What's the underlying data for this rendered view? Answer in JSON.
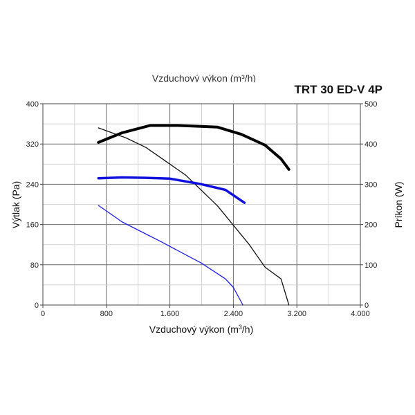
{
  "chart_data": {
    "type": "line",
    "title": "TRT 30 ED-V 4P",
    "top_label": "Vzduchový výkon (m³/h)",
    "xlabel_main": "Vzduchový výkon (m",
    "xlabel_sup": "3",
    "xlabel_end": "/h)",
    "ylabel_left": "Výtlak (Pa)",
    "ylabel_right": "Príkon (W)",
    "xlim": [
      0,
      4000
    ],
    "ylim_left": [
      0,
      400
    ],
    "ylim_right": [
      0,
      500
    ],
    "x_ticks": [
      0,
      800,
      1600,
      2400,
      3200,
      4000
    ],
    "x_tick_labels": [
      "0",
      "800",
      "1.600",
      "2.400",
      "3.200",
      "4.000"
    ],
    "y_left_ticks": [
      0,
      80,
      160,
      240,
      320,
      400
    ],
    "y_left_tick_labels": [
      "0",
      "80",
      "160",
      "240",
      "320",
      "400"
    ],
    "y_right_ticks": [
      0,
      100,
      200,
      300,
      400,
      500
    ],
    "y_right_tick_labels": [
      "0",
      "100",
      "200",
      "300",
      "400",
      "500"
    ],
    "grid": true,
    "series": [
      {
        "axis": "left",
        "color": "#111111",
        "width": 1.3,
        "points": [
          [
            700,
            352
          ],
          [
            1050,
            332
          ],
          [
            1300,
            313
          ],
          [
            1800,
            258
          ],
          [
            2200,
            197
          ],
          [
            2600,
            120
          ],
          [
            2800,
            75
          ],
          [
            3000,
            52
          ],
          [
            3100,
            0
          ]
        ]
      },
      {
        "axis": "right",
        "color": "#000000",
        "width": 4,
        "points": [
          [
            700,
            404
          ],
          [
            1000,
            428
          ],
          [
            1350,
            446
          ],
          [
            1700,
            446
          ],
          [
            2200,
            442
          ],
          [
            2500,
            424
          ],
          [
            2800,
            397
          ],
          [
            3000,
            363
          ],
          [
            3100,
            337
          ]
        ]
      },
      {
        "axis": "left",
        "color": "#1a1ae6",
        "width": 1.3,
        "points": [
          [
            700,
            198
          ],
          [
            1000,
            165
          ],
          [
            1500,
            125
          ],
          [
            2000,
            83
          ],
          [
            2300,
            52
          ],
          [
            2400,
            35
          ],
          [
            2520,
            0
          ]
        ]
      },
      {
        "axis": "right",
        "color": "#1010dd",
        "width": 3.5,
        "points": [
          [
            700,
            315
          ],
          [
            1000,
            317
          ],
          [
            1300,
            316
          ],
          [
            1600,
            314
          ],
          [
            2000,
            300
          ],
          [
            2300,
            286
          ],
          [
            2540,
            254
          ]
        ]
      }
    ]
  }
}
